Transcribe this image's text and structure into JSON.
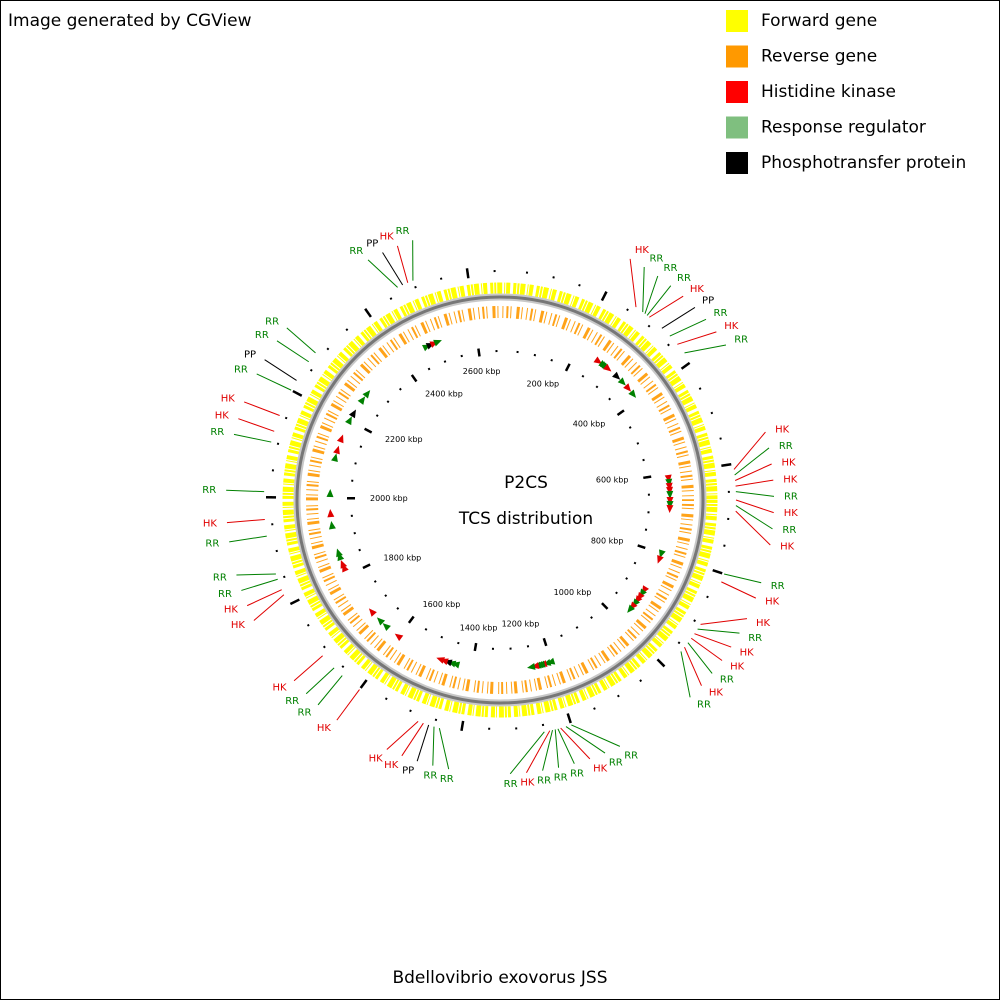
{
  "header": {
    "note": "Image generated by CGView"
  },
  "legend": [
    {
      "label": "Forward gene",
      "color": "#ffff00"
    },
    {
      "label": "Reverse gene",
      "color": "#ff9900"
    },
    {
      "label": "Histidine kinase",
      "color": "#ff0000"
    },
    {
      "label": "Response regulator",
      "color": "#7fbf7f"
    },
    {
      "label": "Phosphotransfer protein",
      "color": "#000000"
    }
  ],
  "map": {
    "title": "P2CS",
    "subtitle": "TCS distribution",
    "organism": "Bdellovibrio exovorus JSS",
    "length_kbp": 2660,
    "minor_tick_step_kbp": 50,
    "ticks": [
      {
        "value": 200,
        "label": "200 kbp"
      },
      {
        "value": 400,
        "label": "400 kbp"
      },
      {
        "value": 600,
        "label": "600 kbp"
      },
      {
        "value": 800,
        "label": "800 kbp"
      },
      {
        "value": 1000,
        "label": "1000 kbp"
      },
      {
        "value": 1200,
        "label": "1200 kbp"
      },
      {
        "value": 1400,
        "label": "1400 kbp"
      },
      {
        "value": 1600,
        "label": "1600 kbp"
      },
      {
        "value": 1800,
        "label": "1800 kbp"
      },
      {
        "value": 2000,
        "label": "2000 kbp"
      },
      {
        "value": 2200,
        "label": "2200 kbp"
      },
      {
        "value": 2400,
        "label": "2400 kbp"
      },
      {
        "value": 2600,
        "label": "2600 kbp"
      }
    ],
    "label_colors": {
      "HK": "#e00000",
      "RR": "#008000",
      "PP": "#000000"
    },
    "features": [
      {
        "label": "HK",
        "position_kbp": 260
      },
      {
        "label": "RR",
        "position_kbp": 275
      },
      {
        "label": "RR",
        "position_kbp": 280
      },
      {
        "label": "RR",
        "position_kbp": 285
      },
      {
        "label": "HK",
        "position_kbp": 290
      },
      {
        "label": "PP",
        "position_kbp": 320
      },
      {
        "label": "RR",
        "position_kbp": 340
      },
      {
        "label": "HK",
        "position_kbp": 360
      },
      {
        "label": "RR",
        "position_kbp": 380
      },
      {
        "label": "HK",
        "position_kbp": 610
      },
      {
        "label": "RR",
        "position_kbp": 620
      },
      {
        "label": "HK",
        "position_kbp": 630
      },
      {
        "label": "HK",
        "position_kbp": 640
      },
      {
        "label": "RR",
        "position_kbp": 650
      },
      {
        "label": "HK",
        "position_kbp": 665
      },
      {
        "label": "RR",
        "position_kbp": 675
      },
      {
        "label": "HK",
        "position_kbp": 685
      },
      {
        "label": "RR",
        "position_kbp": 800
      },
      {
        "label": "HK",
        "position_kbp": 815
      },
      {
        "label": "HK",
        "position_kbp": 900
      },
      {
        "label": "RR",
        "position_kbp": 910
      },
      {
        "label": "HK",
        "position_kbp": 920
      },
      {
        "label": "HK",
        "position_kbp": 930
      },
      {
        "label": "RR",
        "position_kbp": 940
      },
      {
        "label": "HK",
        "position_kbp": 950
      },
      {
        "label": "RR",
        "position_kbp": 960
      },
      {
        "label": "RR",
        "position_kbp": 1200
      },
      {
        "label": "RR",
        "position_kbp": 1210
      },
      {
        "label": "HK",
        "position_kbp": 1220
      },
      {
        "label": "RR",
        "position_kbp": 1225
      },
      {
        "label": "RR",
        "position_kbp": 1230
      },
      {
        "label": "RR",
        "position_kbp": 1235
      },
      {
        "label": "HK",
        "position_kbp": 1240
      },
      {
        "label": "RR",
        "position_kbp": 1250
      },
      {
        "label": "RR",
        "position_kbp": 1440
      },
      {
        "label": "RR",
        "position_kbp": 1450
      },
      {
        "label": "PP",
        "position_kbp": 1460
      },
      {
        "label": "HK",
        "position_kbp": 1470
      },
      {
        "label": "HK",
        "position_kbp": 1480
      },
      {
        "label": "HK",
        "position_kbp": 1600
      },
      {
        "label": "RR",
        "position_kbp": 1640
      },
      {
        "label": "RR",
        "position_kbp": 1660
      },
      {
        "label": "HK",
        "position_kbp": 1690
      },
      {
        "label": "HK",
        "position_kbp": 1820
      },
      {
        "label": "HK",
        "position_kbp": 1830
      },
      {
        "label": "RR",
        "position_kbp": 1850
      },
      {
        "label": "RR",
        "position_kbp": 1860
      },
      {
        "label": "RR",
        "position_kbp": 1930
      },
      {
        "label": "HK",
        "position_kbp": 1960
      },
      {
        "label": "RR",
        "position_kbp": 2010
      },
      {
        "label": "RR",
        "position_kbp": 2100
      },
      {
        "label": "HK",
        "position_kbp": 2120
      },
      {
        "label": "HK",
        "position_kbp": 2150
      },
      {
        "label": "RR",
        "position_kbp": 2200
      },
      {
        "label": "PP",
        "position_kbp": 2220
      },
      {
        "label": "RR",
        "position_kbp": 2260
      },
      {
        "label": "RR",
        "position_kbp": 2280
      },
      {
        "label": "RR",
        "position_kbp": 2470
      },
      {
        "label": "PP",
        "position_kbp": 2480
      },
      {
        "label": "HK",
        "position_kbp": 2490
      },
      {
        "label": "RR",
        "position_kbp": 2500
      }
    ]
  }
}
